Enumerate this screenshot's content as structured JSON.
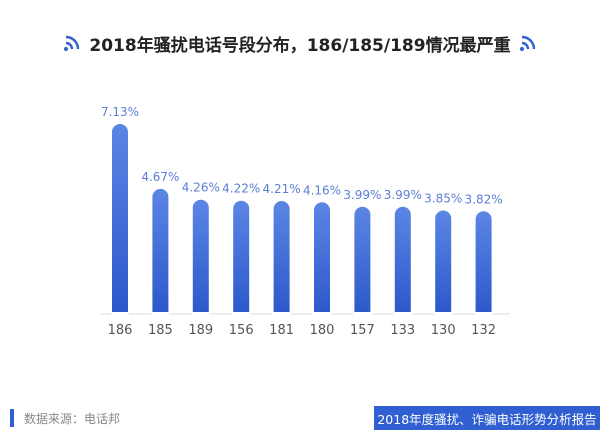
{
  "header": {
    "title": "2018年骚扰电话号段分布，186/185/189情况最严重",
    "left_icon": "signal-waves-icon",
    "right_icon": "signal-waves-icon",
    "accent_color": "#2f5fd0"
  },
  "chart_data": {
    "type": "bar",
    "title": "2018年骚扰电话号段分布，186/185/189情况最严重",
    "xlabel": "",
    "ylabel": "",
    "categories": [
      "186",
      "185",
      "189",
      "156",
      "181",
      "180",
      "157",
      "133",
      "130",
      "132"
    ],
    "values": [
      7.13,
      4.67,
      4.26,
      4.22,
      4.21,
      4.16,
      3.99,
      3.99,
      3.85,
      3.82
    ],
    "value_labels": [
      "7.13%",
      "4.67%",
      "4.26%",
      "4.22%",
      "4.21%",
      "4.16%",
      "3.99%",
      "3.99%",
      "3.85%",
      "3.82%"
    ],
    "unit": "%",
    "ylim": [
      0,
      7.13
    ],
    "grid": false,
    "bar_color_top": "#5b86e5",
    "bar_color_bottom": "#2a55c9"
  },
  "footer": {
    "source": "数据来源：电话邦",
    "report": "2018年度骚扰、诈骗电话形势分析报告"
  }
}
